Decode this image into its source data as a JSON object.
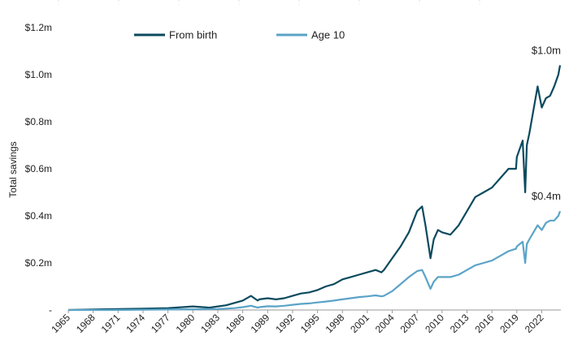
{
  "chart_data": {
    "type": "line",
    "title": "",
    "xlabel": "",
    "ylabel": "Total savings",
    "xlim": [
      1965,
      2024.3
    ],
    "ylim": [
      0,
      1.2
    ],
    "y_ticks": [
      {
        "value": 0,
        "label": "-"
      },
      {
        "value": 0.2,
        "label": "$0.2m"
      },
      {
        "value": 0.4,
        "label": "$0.4m"
      },
      {
        "value": 0.6,
        "label": "$0.6m"
      },
      {
        "value": 0.8,
        "label": "$0.8m"
      },
      {
        "value": 1.0,
        "label": "$1.0m"
      },
      {
        "value": 1.2,
        "label": "$1.2m"
      }
    ],
    "x_ticks": [
      "1965",
      "1968",
      "1971",
      "1974",
      "1977",
      "1980",
      "1983",
      "1986",
      "1989",
      "1992",
      "1995",
      "1998",
      "2001",
      "2004",
      "2007",
      "2010",
      "2013",
      "2016",
      "2019",
      "2022"
    ],
    "grid": "vertical-dashed",
    "legend_position": "top-center",
    "series": [
      {
        "name": "From birth",
        "color": "#0b4a5e",
        "end_label": "$1.0m",
        "x": [
          1965,
          1968,
          1971,
          1974,
          1977,
          1980,
          1982,
          1983,
          1984,
          1985,
          1986,
          1987,
          1987.8,
          1988,
          1989,
          1990,
          1991,
          1992,
          1993,
          1994,
          1995,
          1996,
          1997,
          1998,
          1999,
          2000,
          2001,
          2002,
          2002.7,
          2003,
          2004,
          2005,
          2006,
          2007,
          2007.6,
          2008,
          2008.6,
          2009,
          2009.5,
          2010,
          2011,
          2012,
          2013,
          2014,
          2015,
          2016,
          2017,
          2018,
          2018.9,
          2019,
          2019.7,
          2020,
          2020.2,
          2020.5,
          2021,
          2021.5,
          2022,
          2022.5,
          2023,
          2023.5,
          2024,
          2024.2
        ],
        "values": [
          0,
          0.002,
          0.004,
          0.006,
          0.008,
          0.015,
          0.01,
          0.015,
          0.02,
          0.03,
          0.04,
          0.06,
          0.04,
          0.045,
          0.05,
          0.045,
          0.05,
          0.06,
          0.07,
          0.075,
          0.085,
          0.1,
          0.11,
          0.13,
          0.14,
          0.15,
          0.16,
          0.17,
          0.16,
          0.17,
          0.22,
          0.27,
          0.33,
          0.42,
          0.44,
          0.36,
          0.22,
          0.3,
          0.34,
          0.33,
          0.32,
          0.36,
          0.42,
          0.48,
          0.5,
          0.52,
          0.56,
          0.6,
          0.6,
          0.65,
          0.72,
          0.5,
          0.7,
          0.75,
          0.85,
          0.95,
          0.86,
          0.9,
          0.91,
          0.95,
          1.0,
          1.04
        ]
      },
      {
        "name": "Age 10",
        "color": "#5ba3c7",
        "end_label": "$0.4m",
        "x": [
          1965,
          1968,
          1971,
          1974,
          1977,
          1980,
          1983,
          1985,
          1986,
          1987,
          1987.8,
          1988,
          1989,
          1990,
          1991,
          1992,
          1993,
          1994,
          1995,
          1996,
          1997,
          1998,
          1999,
          2000,
          2001,
          2002,
          2002.7,
          2003,
          2004,
          2005,
          2006,
          2007,
          2007.6,
          2008,
          2008.6,
          2009,
          2009.5,
          2010,
          2011,
          2012,
          2013,
          2014,
          2015,
          2016,
          2017,
          2018,
          2018.9,
          2019,
          2019.7,
          2020,
          2020.2,
          2020.5,
          2021,
          2021.5,
          2022,
          2022.5,
          2023,
          2023.5,
          2024,
          2024.2
        ],
        "values": [
          0,
          0,
          0,
          0.001,
          0.002,
          0.003,
          0.004,
          0.008,
          0.012,
          0.018,
          0.01,
          0.012,
          0.016,
          0.015,
          0.018,
          0.022,
          0.026,
          0.028,
          0.032,
          0.036,
          0.04,
          0.045,
          0.05,
          0.055,
          0.058,
          0.062,
          0.058,
          0.06,
          0.08,
          0.11,
          0.14,
          0.165,
          0.17,
          0.14,
          0.09,
          0.12,
          0.14,
          0.14,
          0.14,
          0.15,
          0.17,
          0.19,
          0.2,
          0.21,
          0.23,
          0.25,
          0.26,
          0.27,
          0.29,
          0.2,
          0.28,
          0.3,
          0.33,
          0.36,
          0.34,
          0.37,
          0.38,
          0.38,
          0.4,
          0.42
        ]
      }
    ]
  }
}
